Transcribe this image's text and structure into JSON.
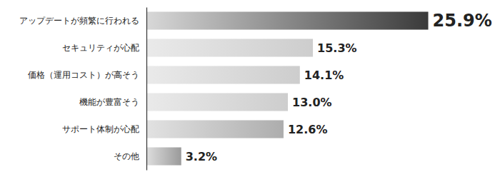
{
  "chart_data": {
    "type": "bar",
    "orientation": "horizontal",
    "categories": [
      "アップデートが頻繁に行われる",
      "セキュリティが心配",
      "価格（運用コスト）が高そう",
      "機能が豊富そう",
      "サポート体制が心配",
      "その他"
    ],
    "values": [
      25.9,
      15.3,
      14.1,
      13.0,
      12.6,
      3.2
    ],
    "value_labels": [
      "25.9%",
      "15.3%",
      "14.1%",
      "13.0%",
      "12.6%",
      "3.2%"
    ],
    "colors": [
      "#3a3a3a",
      "#cdcdcd",
      "#cdcdcd",
      "#cdcdcd",
      "#adadad",
      "#9a9a9a"
    ],
    "xlim": [
      0,
      30
    ],
    "data_labels": true,
    "tick_labels": "y"
  }
}
